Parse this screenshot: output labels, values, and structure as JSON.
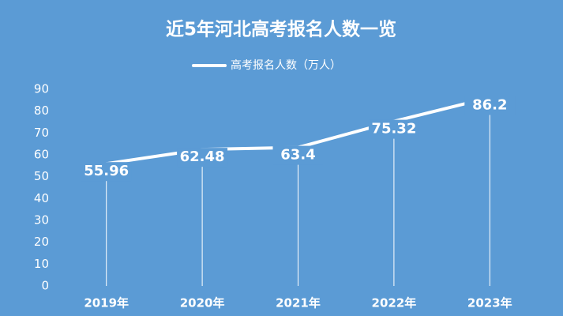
{
  "chart_data": {
    "type": "line",
    "title": "近5年河北高考报名人数一览",
    "categories": [
      "2019年",
      "2020年",
      "2021年",
      "2022年",
      "2023年"
    ],
    "series": [
      {
        "name": "高考报名人数（万人）",
        "color": "#ffffff",
        "values": [
          55.96,
          62.48,
          63.4,
          75.32,
          86.2
        ]
      }
    ],
    "ylim": [
      0,
      90
    ],
    "yticks": [
      0,
      10,
      20,
      30,
      40,
      50,
      60,
      70,
      80,
      90
    ],
    "grid": false,
    "drop_lines": true,
    "data_labels": true,
    "legend": "top",
    "background": "#5b9bd5"
  }
}
